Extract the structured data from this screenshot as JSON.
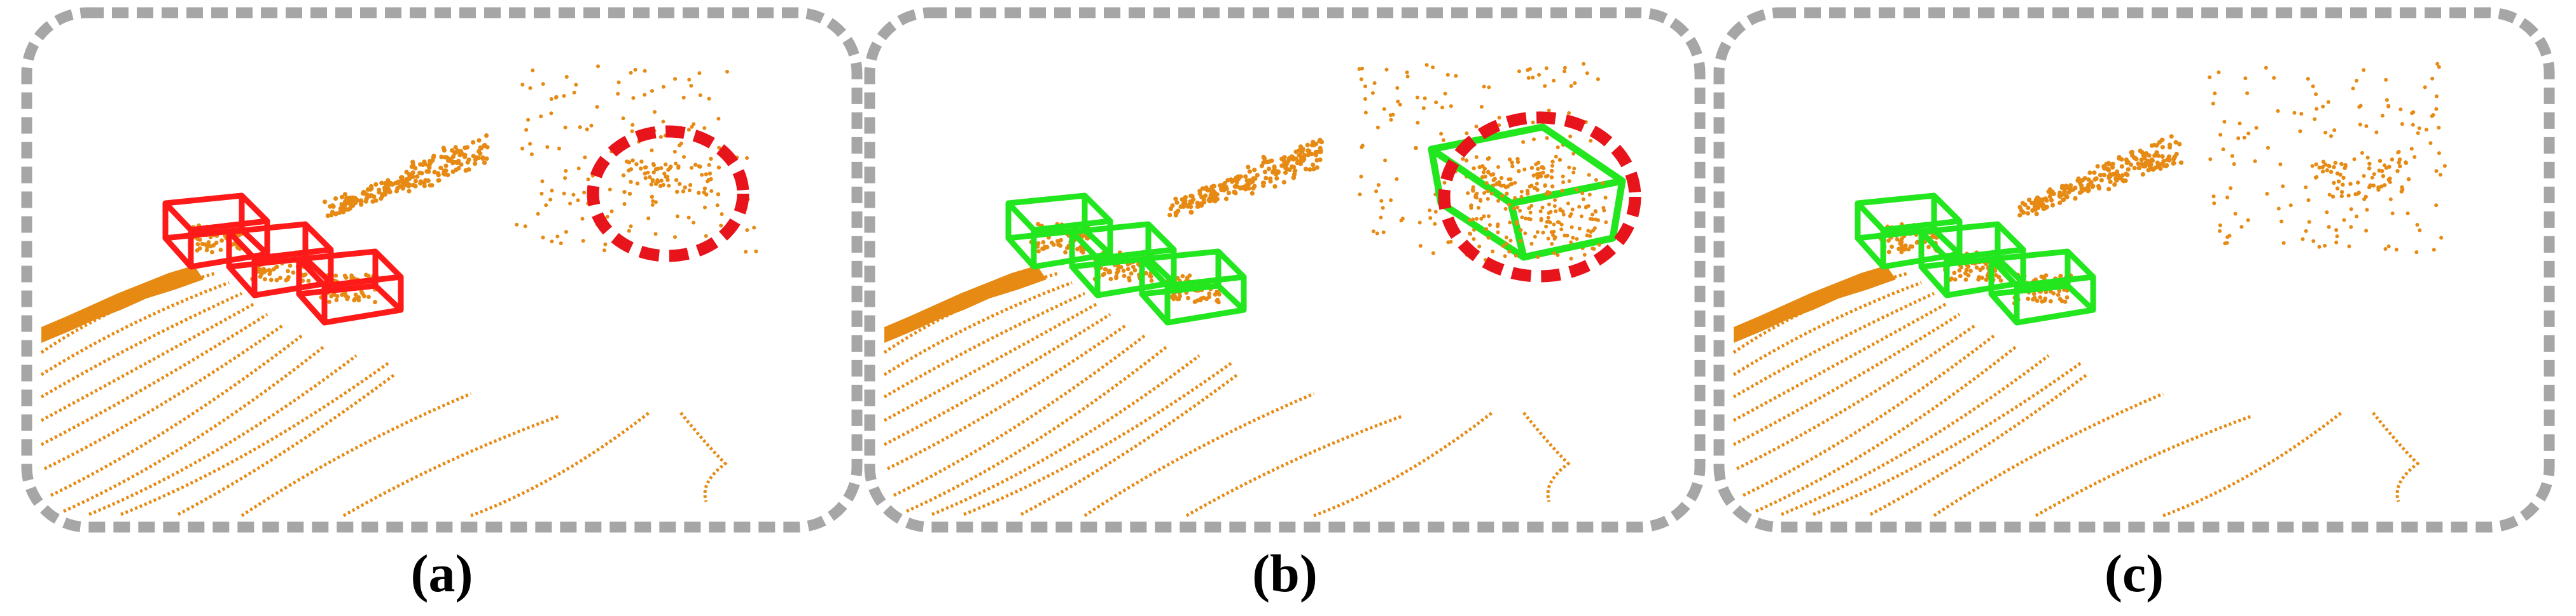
{
  "figure": {
    "colors": {
      "frame": "#a6a6a6",
      "points": "#e68a14",
      "box_error": "#ff1a1a",
      "box_ok": "#22e61e",
      "highlight_circle": "#e8141b"
    },
    "panels": [
      {
        "caption": "(a)",
        "box_color": "red",
        "highlight": "missed-detection"
      },
      {
        "caption": "(b)",
        "box_color": "green",
        "highlight": "false-positive"
      },
      {
        "caption": "(c)",
        "box_color": "green",
        "highlight": "none"
      }
    ]
  }
}
